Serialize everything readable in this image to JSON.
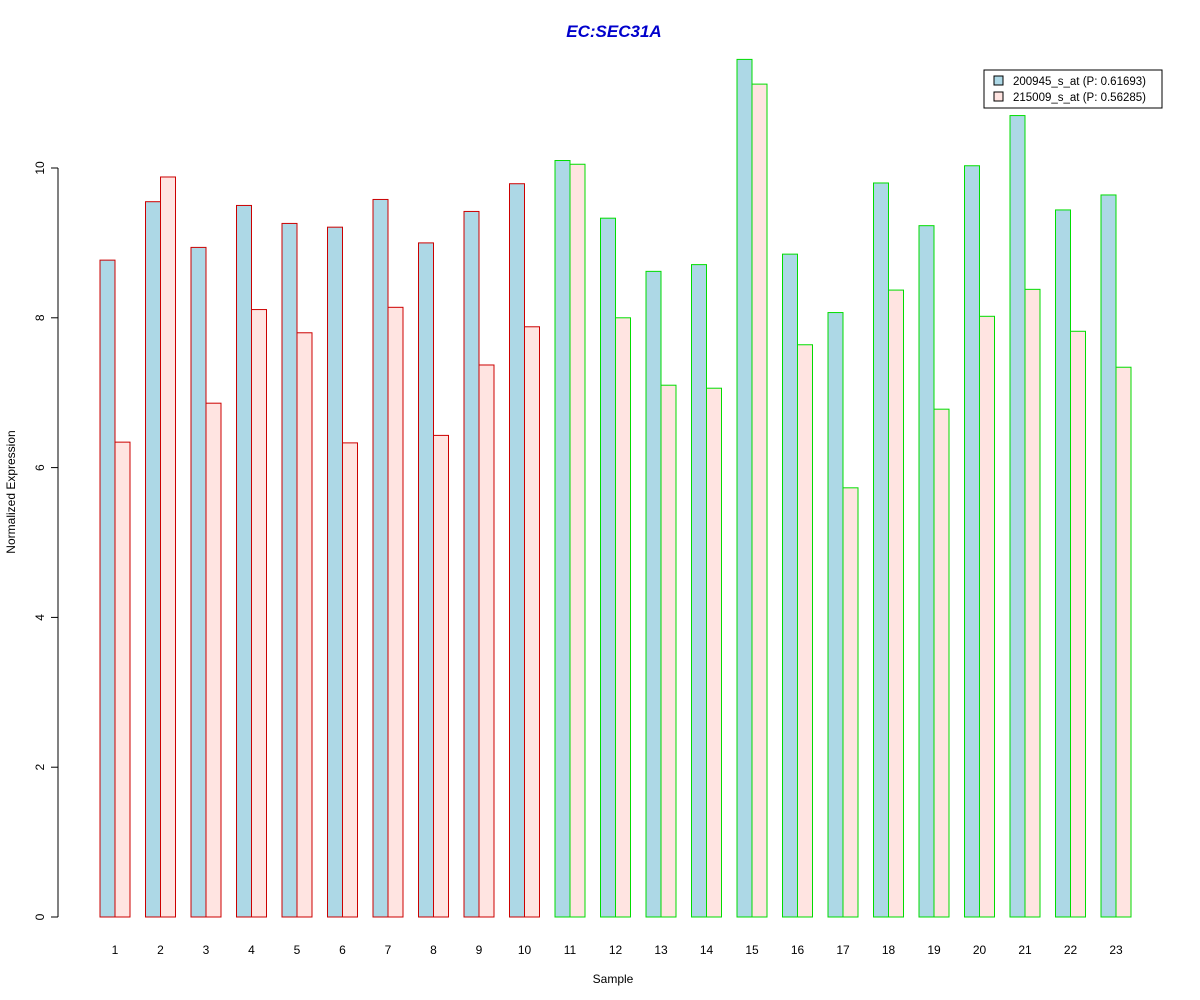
{
  "chart_data": {
    "type": "bar",
    "title": "EC:SEC31A",
    "xlabel": "Sample",
    "ylabel": "Normalized Expression",
    "ylim": [
      0,
      11.5
    ],
    "yticks": [
      0,
      2,
      4,
      6,
      8,
      10
    ],
    "grid": false,
    "legend_position": "top-right",
    "categories": [
      "1",
      "2",
      "3",
      "4",
      "5",
      "6",
      "7",
      "8",
      "9",
      "10",
      "11",
      "12",
      "13",
      "14",
      "15",
      "16",
      "17",
      "18",
      "19",
      "20",
      "21",
      "22",
      "23"
    ],
    "group_border_colors": [
      "#cc0000",
      "#cc0000",
      "#cc0000",
      "#cc0000",
      "#cc0000",
      "#cc0000",
      "#cc0000",
      "#cc0000",
      "#cc0000",
      "#cc0000",
      "#00dd00",
      "#00dd00",
      "#00dd00",
      "#00dd00",
      "#00dd00",
      "#00dd00",
      "#00dd00",
      "#00dd00",
      "#00dd00",
      "#00dd00",
      "#00dd00",
      "#00dd00",
      "#00dd00"
    ],
    "series": [
      {
        "name": "200945_s_at (P: 0.61693)",
        "color": "#add8e6",
        "values": [
          8.77,
          9.55,
          8.94,
          9.5,
          9.26,
          9.21,
          9.58,
          9.0,
          9.42,
          9.79,
          10.1,
          9.33,
          8.62,
          8.71,
          11.45,
          8.85,
          8.07,
          9.8,
          9.23,
          10.03,
          10.7,
          9.44,
          9.64
        ]
      },
      {
        "name": "215009_s_at (P: 0.56285)",
        "color": "#ffe4e1",
        "values": [
          6.34,
          9.88,
          6.86,
          8.11,
          7.8,
          6.33,
          8.14,
          6.43,
          7.37,
          7.88,
          10.05,
          8.0,
          7.1,
          7.06,
          11.12,
          7.64,
          5.73,
          8.37,
          6.78,
          8.02,
          8.38,
          7.82,
          7.34
        ]
      }
    ]
  }
}
